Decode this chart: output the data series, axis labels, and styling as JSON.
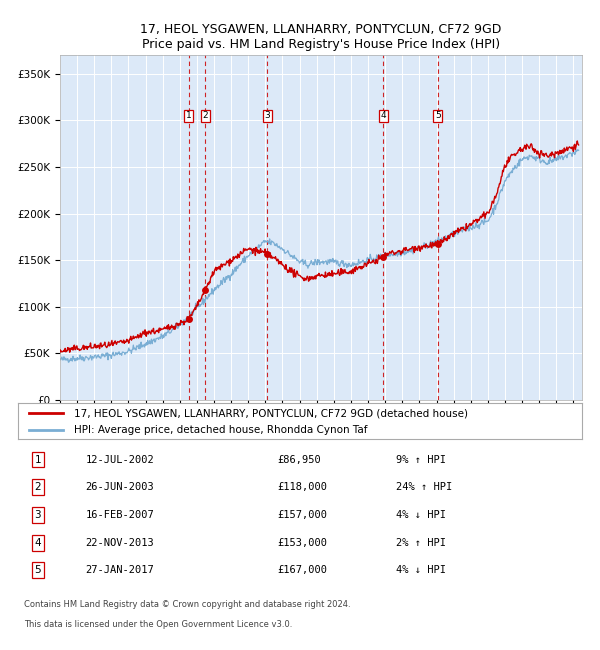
{
  "title1": "17, HEOL YSGAWEN, LLANHARRY, PONTYCLUN, CF72 9GD",
  "title2": "Price paid vs. HM Land Registry's House Price Index (HPI)",
  "ylabel_ticks": [
    "£0",
    "£50K",
    "£100K",
    "£150K",
    "£200K",
    "£250K",
    "£300K",
    "£350K"
  ],
  "ytick_vals": [
    0,
    50000,
    100000,
    150000,
    200000,
    250000,
    300000,
    350000
  ],
  "ylim": [
    0,
    370000
  ],
  "xlim_start": 1995.0,
  "xlim_end": 2025.5,
  "plot_bg": "#dce9f8",
  "grid_color": "#ffffff",
  "red_line_color": "#cc0000",
  "blue_line_color": "#7aaed4",
  "sale_marker_color": "#cc0000",
  "vline_color": "#cc0000",
  "transactions": [
    {
      "num": 1,
      "date_label": "12-JUL-2002",
      "x": 2002.53,
      "price": 86950,
      "pct": "9%",
      "dir": "↑"
    },
    {
      "num": 2,
      "date_label": "26-JUN-2003",
      "x": 2003.49,
      "price": 118000,
      "pct": "24%",
      "dir": "↑"
    },
    {
      "num": 3,
      "date_label": "16-FEB-2007",
      "x": 2007.12,
      "price": 157000,
      "pct": "4%",
      "dir": "↓"
    },
    {
      "num": 4,
      "date_label": "22-NOV-2013",
      "x": 2013.89,
      "price": 153000,
      "pct": "2%",
      "dir": "↑"
    },
    {
      "num": 5,
      "date_label": "27-JAN-2017",
      "x": 2017.07,
      "price": 167000,
      "pct": "4%",
      "dir": "↓"
    }
  ],
  "legend_red_label": "17, HEOL YSGAWEN, LLANHARRY, PONTYCLUN, CF72 9GD (detached house)",
  "legend_blue_label": "HPI: Average price, detached house, Rhondda Cynon Taf",
  "footer1": "Contains HM Land Registry data © Crown copyright and database right 2024.",
  "footer2": "This data is licensed under the Open Government Licence v3.0."
}
